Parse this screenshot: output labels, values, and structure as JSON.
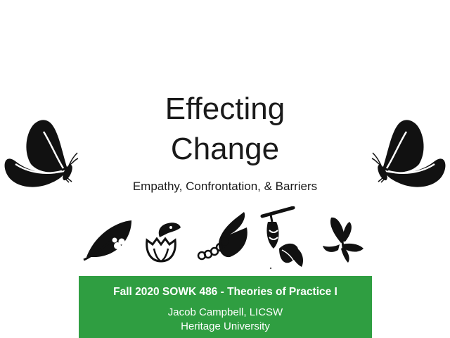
{
  "slide": {
    "title_line1": "Effecting",
    "title_line2": "Change",
    "subtitle": "Empathy, Confrontation, & Barriers"
  },
  "banner": {
    "course": "Fall 2020 SOWK 486 - Theories of Practice I",
    "author": "Jacob Campbell, LICSW",
    "institution": "Heritage University",
    "color": "#2f9e41"
  },
  "icons": [
    "butterfly-icon",
    "leaf-with-eggs-icon",
    "hatching-egg-icon",
    "caterpillar-on-leaf-icon",
    "chrysalis-icon",
    "emerging-butterfly-icon",
    "butterfly-icon"
  ]
}
